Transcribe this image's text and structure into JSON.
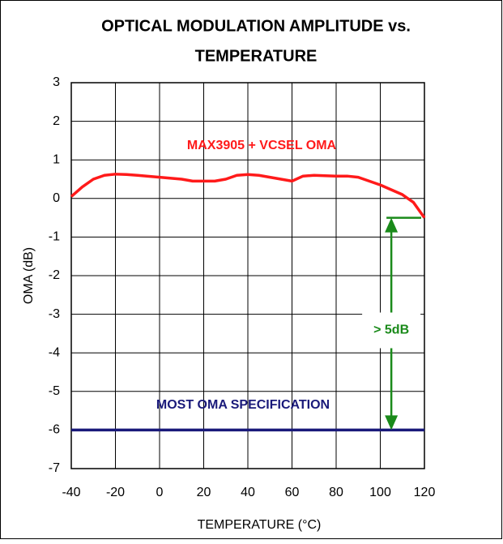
{
  "chart_data": {
    "type": "line",
    "title": [
      "OPTICAL MODULATION AMPLITUDE vs.",
      "TEMPERATURE"
    ],
    "x_label": "TEMPERATURE (°C)",
    "y_label": "OMA (dB)",
    "xlim": [
      -40,
      120
    ],
    "xticks": [
      -40,
      -20,
      0,
      20,
      40,
      60,
      80,
      100,
      120
    ],
    "ylim": [
      -7,
      3
    ],
    "yticks": [
      -7,
      -6,
      -5,
      -4,
      -3,
      -2,
      -1,
      0,
      1,
      2,
      3
    ],
    "grid": true,
    "series": [
      {
        "name": "MAX3905 + VCSEL OMA",
        "color": "#ff1a1a",
        "x": [
          -40,
          -35,
          -30,
          -25,
          -20,
          -15,
          -10,
          0,
          10,
          15,
          20,
          25,
          30,
          35,
          40,
          45,
          50,
          60,
          65,
          70,
          80,
          85,
          90,
          100,
          110,
          115,
          120
        ],
        "values": [
          0.05,
          0.3,
          0.5,
          0.6,
          0.63,
          0.62,
          0.6,
          0.55,
          0.5,
          0.45,
          0.45,
          0.45,
          0.5,
          0.6,
          0.62,
          0.6,
          0.55,
          0.45,
          0.58,
          0.6,
          0.58,
          0.58,
          0.55,
          0.35,
          0.1,
          -0.1,
          -0.5
        ]
      },
      {
        "name": "MOST OMA SPECIFICATION",
        "color": "#1a1a7a",
        "x": [
          -40,
          120
        ],
        "values": [
          -6,
          -6
        ]
      }
    ],
    "annotation": {
      "text": "> 5dB",
      "color": "#1a8a1a",
      "x": 105,
      "y_top": -0.5,
      "y_bottom": -6
    }
  }
}
